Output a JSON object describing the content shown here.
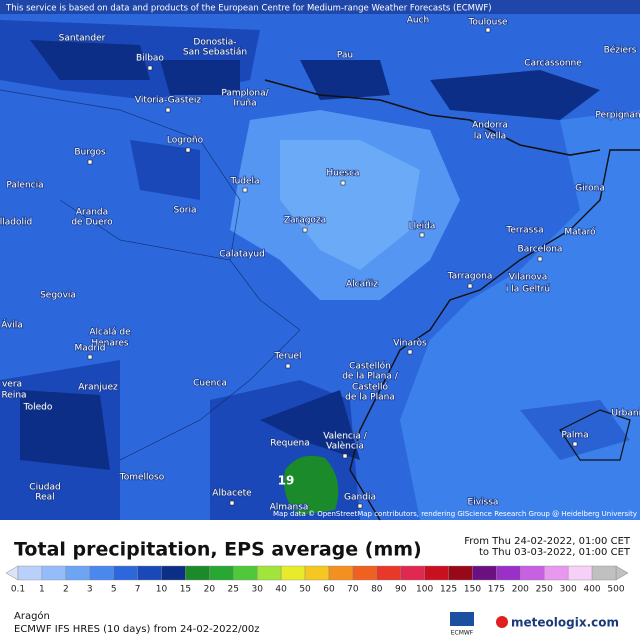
{
  "header": {
    "disclaimer": "This service is based on data and products of the European Centre for Medium-range Weather Forecasts (ECMWF)"
  },
  "map": {
    "cities": [
      "Auch",
      "Toulouse",
      "Santander",
      "Bilbao",
      "Donostia-",
      "San Sebastián",
      "Pau",
      "Béziers",
      "Carcassonne",
      "Vitoria-Gasteiz",
      "Pamplona/",
      "Iruña",
      "Perpignan",
      "Andorra",
      "la Vella",
      "Logroño",
      "Burgos",
      "Tudela",
      "Huesca",
      "Palencia",
      "Girona",
      "Aranda",
      "de Duero",
      "Soria",
      "Zaragoza",
      "Lleida",
      "Terrassa",
      "Mataró",
      "Barcelona",
      "lladolid",
      "Calatayud",
      "Tarragona",
      "Vilanova",
      "i la Geltrú",
      "Segovia",
      "Alcañiz",
      "Ávila",
      "Alcalá de",
      "Henares",
      "Madrid",
      "Vinaròs",
      "Teruel",
      "Castellón",
      "de la Plana /",
      "Castelló",
      "de la Plana",
      "Aranjuez",
      "Cuenca",
      "vera",
      "Reina",
      "Toledo",
      "Palma",
      "Urbanit",
      "Requena",
      "Valencia /",
      "València",
      "Ciudad",
      "Real",
      "Tomelloso",
      "Albacete",
      "Gandia",
      "Eivissa",
      "Almansa"
    ],
    "max_label": "19",
    "attribution": "Map data © OpenStreetMap contributors, rendering GIScience Research Group @ Heidelberg University"
  },
  "footer": {
    "title": "Total precipitation, EPS average (mm)",
    "from": "From Thu 24-02-2022, 01:00 CET",
    "to": "to Thu 03-03-2022, 01:00 CET",
    "legend": [
      {
        "label": "0.1",
        "color": "#dde3f8"
      },
      {
        "label": "1",
        "color": "#b8d0fa"
      },
      {
        "label": "2",
        "color": "#94bcf8"
      },
      {
        "label": "3",
        "color": "#6ea4f4"
      },
      {
        "label": "5",
        "color": "#4a88ee"
      },
      {
        "label": "7",
        "color": "#2c68dc"
      },
      {
        "label": "10",
        "color": "#1b48b8"
      },
      {
        "label": "15",
        "color": "#0d2e86"
      },
      {
        "label": "20",
        "color": "#1a8a2a"
      },
      {
        "label": "25",
        "color": "#28a832"
      },
      {
        "label": "30",
        "color": "#50c83c"
      },
      {
        "label": "40",
        "color": "#a0e43c"
      },
      {
        "label": "50",
        "color": "#e8ec28"
      },
      {
        "label": "60",
        "color": "#f4c820"
      },
      {
        "label": "70",
        "color": "#f49020"
      },
      {
        "label": "80",
        "color": "#f06020"
      },
      {
        "label": "90",
        "color": "#e83828"
      },
      {
        "label": "100",
        "color": "#e02850"
      },
      {
        "label": "125",
        "color": "#c81020"
      },
      {
        "label": "150",
        "color": "#980818"
      },
      {
        "label": "175",
        "color": "#6a1080"
      },
      {
        "label": "200",
        "color": "#9a30c8"
      },
      {
        "label": "250",
        "color": "#c860e4"
      },
      {
        "label": "300",
        "color": "#e898f0"
      },
      {
        "label": "400",
        "color": "#f6d0f8"
      },
      {
        "label": "500",
        "color": "#c0c0c0"
      }
    ],
    "region": "Aragón",
    "model": "ECMWF IFS HRES (10 days) from 24-02-2022/00z",
    "ecmwf": "ECMWF",
    "brand": "meteologix.com"
  }
}
